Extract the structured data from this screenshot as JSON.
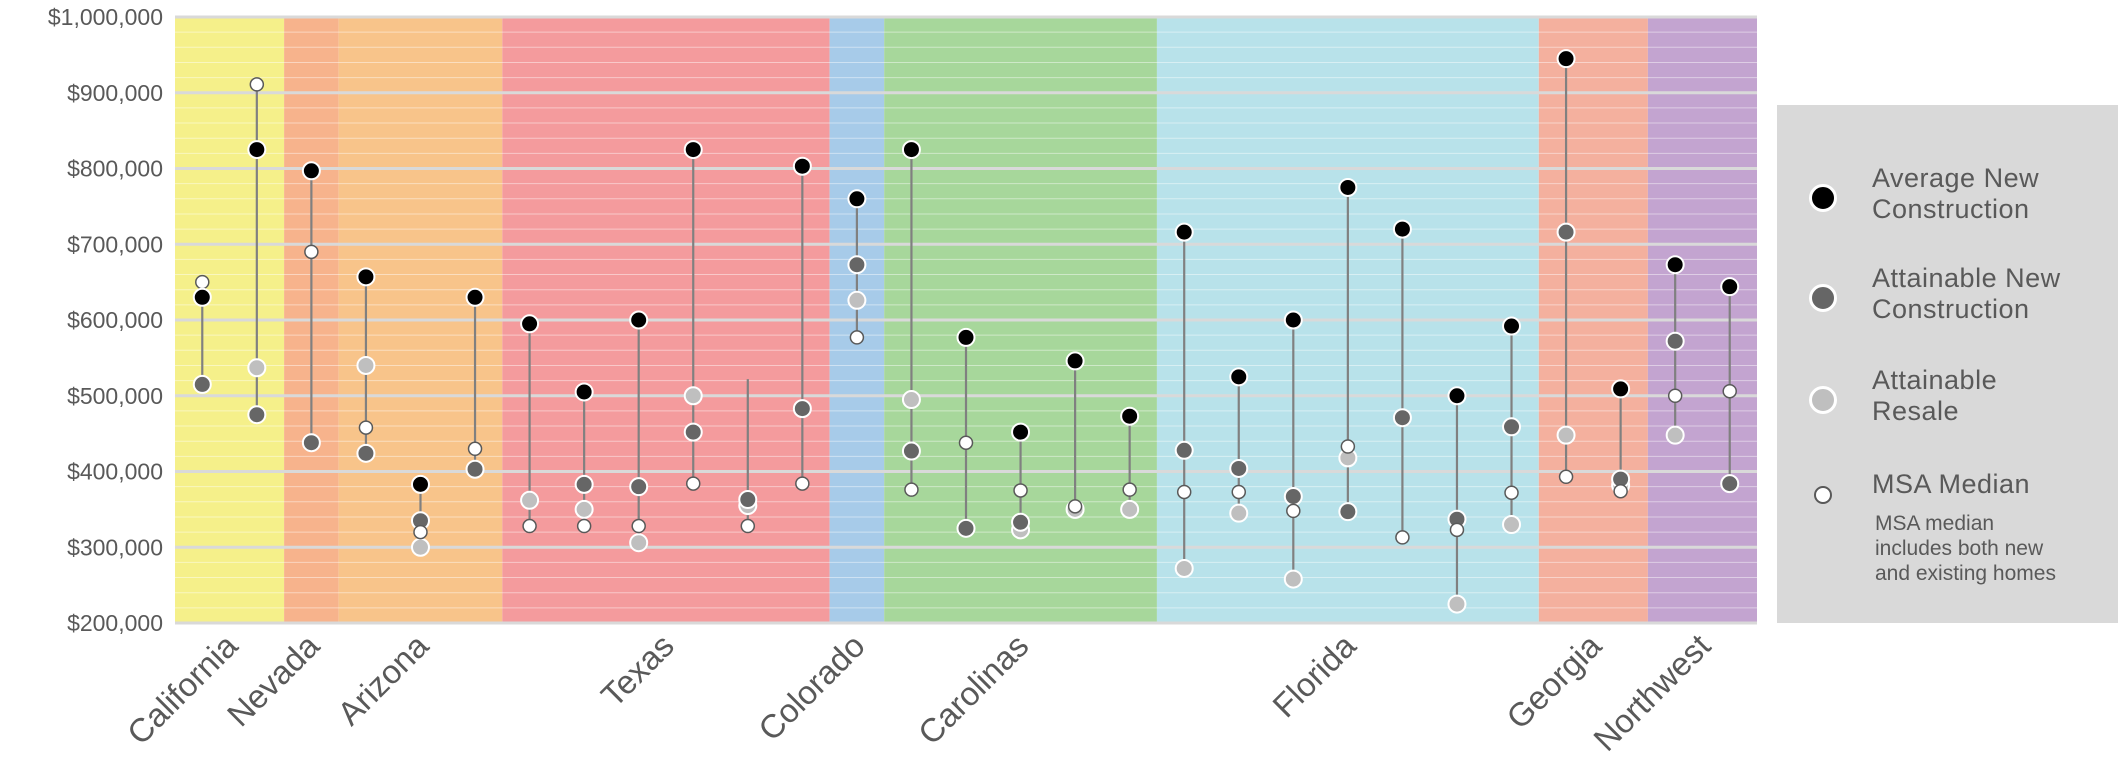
{
  "chart_data": {
    "type": "scatter",
    "title": "",
    "xlabel": "",
    "ylabel": "",
    "ylim": [
      200000,
      1000000
    ],
    "y_ticks": [
      "$1,000,000",
      "$900,000",
      "$800,000",
      "$700,000",
      "$600,000",
      "$500,000",
      "$400,000",
      "$300,000",
      "$200,000"
    ],
    "grid": true,
    "legend_position": "right",
    "regions": [
      {
        "name": "California",
        "markets": 2,
        "color": "#f5f08a"
      },
      {
        "name": "Nevada",
        "markets": 1,
        "color": "#f7b38c"
      },
      {
        "name": "Arizona",
        "markets": 3,
        "color": "#f8c48a"
      },
      {
        "name": "Texas",
        "markets": 6,
        "color": "#f49b9d"
      },
      {
        "name": "Colorado",
        "markets": 1,
        "color": "#a7cbe9"
      },
      {
        "name": "Carolinas",
        "markets": 5,
        "color": "#a7d79b"
      },
      {
        "name": "Florida",
        "markets": 7,
        "color": "#b8e2ea"
      },
      {
        "name": "Georgia",
        "markets": 2,
        "color": "#f4b09e"
      },
      {
        "name": "Northwest",
        "markets": 2,
        "color": "#c3a4d0"
      }
    ],
    "series": [
      {
        "name": "Average New Construction",
        "color": "#000000",
        "values": [
          630000,
          825000,
          797000,
          657000,
          383000,
          630000,
          595000,
          505000,
          600000,
          825000,
          null,
          803000,
          760000,
          825000,
          577000,
          452000,
          546000,
          473000,
          716000,
          525000,
          600000,
          775000,
          720000,
          500000,
          592000,
          945000,
          509000,
          673000,
          644000
        ]
      },
      {
        "name": "Attainable New Construction",
        "color": "#666666",
        "values": [
          515000,
          475000,
          438000,
          424000,
          335000,
          403000,
          null,
          383000,
          380000,
          452000,
          363000,
          483000,
          673000,
          427000,
          325000,
          333000,
          null,
          null,
          428000,
          404000,
          367000,
          347000,
          471000,
          337000,
          459000,
          716000,
          390000,
          572000,
          384000
        ]
      },
      {
        "name": "Attainable Resale",
        "color": "#bfbfbf",
        "values": [
          null,
          537000,
          null,
          540000,
          300000,
          null,
          362000,
          350000,
          306000,
          500000,
          355000,
          null,
          626000,
          495000,
          null,
          323000,
          350000,
          350000,
          272000,
          345000,
          258000,
          418000,
          null,
          225000,
          330000,
          448000,
          382000,
          448000,
          null
        ]
      },
      {
        "name": "MSA Median",
        "color": "#ffffff",
        "values": [
          650000,
          911000,
          690000,
          458000,
          320000,
          430000,
          328000,
          328000,
          328000,
          384000,
          328000,
          384000,
          577000,
          376000,
          438000,
          375000,
          354000,
          376000,
          373000,
          373000,
          348000,
          433000,
          313000,
          323000,
          372000,
          393000,
          374000,
          500000,
          506000
        ]
      }
    ],
    "extra_line_tops": [
      null,
      null,
      null,
      null,
      null,
      null,
      null,
      null,
      null,
      null,
      522000,
      null,
      null,
      null,
      null,
      null,
      null,
      null,
      null,
      null,
      null,
      null,
      null,
      null,
      null,
      null,
      null,
      null,
      null
    ]
  },
  "legend": {
    "items": [
      {
        "label_line1": "Average New",
        "label_line2": "Construction",
        "color": "#000000"
      },
      {
        "label_line1": "Attainable New",
        "label_line2": "Construction",
        "color": "#666666"
      },
      {
        "label_line1": "Attainable",
        "label_line2": "Resale",
        "color": "#bfbfbf"
      },
      {
        "label_line1": "MSA Median",
        "label_line2": "",
        "color": "#ffffff"
      }
    ],
    "note_line1": "MSA median",
    "note_line2": "includes both new",
    "note_line3": "and existing homes"
  }
}
